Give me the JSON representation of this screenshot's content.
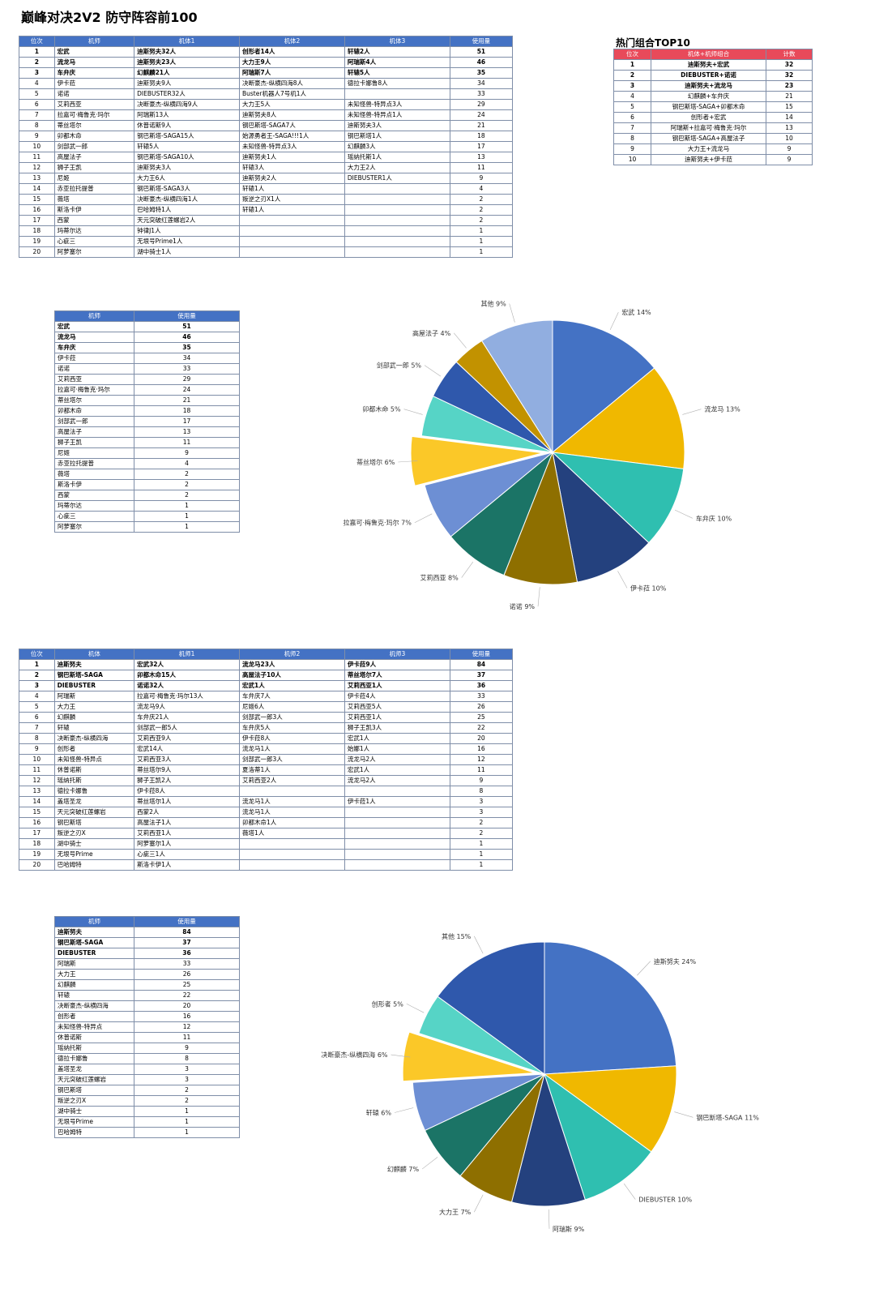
{
  "page_title": "巅峰对决2V2 防守阵容前100",
  "combo_title": "热门组合TOP10",
  "table1": {
    "headers": [
      "位次",
      "机师",
      "机体1",
      "机体2",
      "机体3",
      "使用量"
    ],
    "rows": [
      [
        "1",
        "宏武",
        "迪斯努夫32人",
        "创形者14人",
        "轩辕2人",
        "51"
      ],
      [
        "2",
        "流龙马",
        "迪斯努夫23人",
        "大力王9人",
        "阿瑞斯4人",
        "46"
      ],
      [
        "3",
        "车弁庆",
        "幻麒麟21人",
        "阿瑞斯7人",
        "轩辕5人",
        "35"
      ],
      [
        "4",
        "伊卡菈",
        "迪斯努夫9人",
        "决断豪杰-纵横四海8人",
        "德拉卡娜鲁8人",
        "34"
      ],
      [
        "5",
        "诺诺",
        "DIEBUSTER32人",
        "Buster机器人7号机1人",
        "",
        "33"
      ],
      [
        "6",
        "艾莉西亚",
        "决断豪杰-纵横四海9人",
        "大力王5人",
        "未知怪兽-特异点3人",
        "29"
      ],
      [
        "7",
        "拉嘉可·梅鲁克·玛尔",
        "阿瑞斯13人",
        "迪斯努夫8人",
        "未知怪兽-特异点1人",
        "24"
      ],
      [
        "8",
        "蒂丝塔尔",
        "休普诺斯9人",
        "钢巴斯塔-SAGA7人",
        "迪斯努夫3人",
        "21"
      ],
      [
        "9",
        "卯都木命",
        "钢巴斯塔-SAGA15人",
        "始源勇者王-SAGA!!!1人",
        "钢巴斯塔1人",
        "18"
      ],
      [
        "10",
        "剑部武一郎",
        "轩辕5人",
        "未知怪兽-特异点3人",
        "幻麒麟3人",
        "17"
      ],
      [
        "11",
        "高屋法子",
        "钢巴斯塔-SAGA10人",
        "迪斯努夫1人",
        "瑶纳托斯1人",
        "13"
      ],
      [
        "12",
        "狮子王凯",
        "迪斯努夫3人",
        "轩辕3人",
        "大力王2人",
        "11"
      ],
      [
        "13",
        "尼姬",
        "大力王6人",
        "迪斯努夫2人",
        "DIEBUSTER1人",
        "9"
      ],
      [
        "14",
        "赤亚拉托提普",
        "钢巴斯塔-SAGA3人",
        "轩辕1人",
        "",
        "4"
      ],
      [
        "15",
        "薇塔",
        "决断豪杰-纵横四海1人",
        "叛逆之刃X1人",
        "",
        "2"
      ],
      [
        "16",
        "斯洛卡伊",
        "巴哈姆特1人",
        "轩辕1人",
        "",
        "2"
      ],
      [
        "17",
        "西蒙",
        "天元突破红莲螺岩2人",
        "",
        "",
        "2"
      ],
      [
        "18",
        "玛蒂尔达",
        "钟律J1人",
        "",
        "",
        "1"
      ],
      [
        "19",
        "心疵三",
        "无垠号Prime1人",
        "",
        "",
        "1"
      ],
      [
        "20",
        "阿萝塞尔",
        "湖中骑士1人",
        "",
        "",
        "1"
      ]
    ]
  },
  "combo_table": {
    "headers": [
      "位次",
      "机体+机师组合",
      "计数"
    ],
    "rows": [
      [
        "1",
        "迪斯努夫+宏武",
        "32"
      ],
      [
        "2",
        "DIEBUSTER+诺诺",
        "32"
      ],
      [
        "3",
        "迪斯努夫+流龙马",
        "23"
      ],
      [
        "4",
        "幻麒麟+车弁庆",
        "21"
      ],
      [
        "5",
        "钢巴斯塔-SAGA+卯都木命",
        "15"
      ],
      [
        "6",
        "创形者+宏武",
        "14"
      ],
      [
        "7",
        "阿瑞斯+拉嘉可·梅鲁克·玛尔",
        "13"
      ],
      [
        "8",
        "钢巴斯塔-SAGA+高屋法子",
        "10"
      ],
      [
        "9",
        "大力王+流龙马",
        "9"
      ],
      [
        "10",
        "迪斯努夫+伊卡菈",
        "9"
      ]
    ]
  },
  "table2": {
    "headers": [
      "机师",
      "使用量"
    ],
    "rows": [
      [
        "宏武",
        "51"
      ],
      [
        "流龙马",
        "46"
      ],
      [
        "车弁庆",
        "35"
      ],
      [
        "伊卡菈",
        "34"
      ],
      [
        "诺诺",
        "33"
      ],
      [
        "艾莉西亚",
        "29"
      ],
      [
        "拉嘉可·梅鲁克·玛尔",
        "24"
      ],
      [
        "蒂丝塔尔",
        "21"
      ],
      [
        "卯都木命",
        "18"
      ],
      [
        "剑部武一郎",
        "17"
      ],
      [
        "高屋法子",
        "13"
      ],
      [
        "狮子王凯",
        "11"
      ],
      [
        "尼姬",
        "9"
      ],
      [
        "赤亚拉托提普",
        "4"
      ],
      [
        "薇塔",
        "2"
      ],
      [
        "斯洛卡伊",
        "2"
      ],
      [
        "西蒙",
        "2"
      ],
      [
        "玛蒂尔达",
        "1"
      ],
      [
        "心疵三",
        "1"
      ],
      [
        "阿萝塞尔",
        "1"
      ]
    ]
  },
  "table3": {
    "headers": [
      "位次",
      "机体",
      "机师1",
      "机师2",
      "机师3",
      "使用量"
    ],
    "rows": [
      [
        "1",
        "迪斯努夫",
        "宏武32人",
        "流龙马23人",
        "伊卡菈9人",
        "84"
      ],
      [
        "2",
        "钢巴斯塔-SAGA",
        "卯都木命15人",
        "高屋法子10人",
        "蒂丝塔尔7人",
        "37"
      ],
      [
        "3",
        "DIEBUSTER",
        "诺诺32人",
        "宏武1人",
        "艾莉西亚1人",
        "36"
      ],
      [
        "4",
        "阿瑞斯",
        "拉嘉可·梅鲁克·玛尔13人",
        "车弁庆7人",
        "伊卡菈4人",
        "33"
      ],
      [
        "5",
        "大力王",
        "流龙马9人",
        "尼姬6人",
        "艾莉西亚5人",
        "26"
      ],
      [
        "6",
        "幻麒麟",
        "车弁庆21人",
        "剑部武一郎3人",
        "艾莉西亚1人",
        "25"
      ],
      [
        "7",
        "轩辕",
        "剑部武一郎5人",
        "车弁庆5人",
        "狮子王凯3人",
        "22"
      ],
      [
        "8",
        "决断豪杰-纵横四海",
        "艾莉西亚9人",
        "伊卡菈8人",
        "宏武1人",
        "20"
      ],
      [
        "9",
        "创形者",
        "宏武14人",
        "流龙马1人",
        "始娜1人",
        "16"
      ],
      [
        "10",
        "未知怪兽-特异点",
        "艾莉西亚3人",
        "剑部武一郎3人",
        "流龙马2人",
        "12"
      ],
      [
        "11",
        "休普诺斯",
        "蒂丝塔尔9人",
        "夏洛蒂1人",
        "宏武1人",
        "11"
      ],
      [
        "12",
        "瑶纳托斯",
        "狮子王凯2人",
        "艾莉西亚2人",
        "流龙马2人",
        "9"
      ],
      [
        "13",
        "德拉卡娜鲁",
        "伊卡菈8人",
        "",
        "",
        "8"
      ],
      [
        "14",
        "盖塔圣龙",
        "蒂丝塔尔1人",
        "流龙马1人",
        "伊卡菈1人",
        "3"
      ],
      [
        "15",
        "天元突破红莲螺岩",
        "西蒙2人",
        "流龙马1人",
        "",
        "3"
      ],
      [
        "16",
        "钢巴斯塔",
        "高屋法子1人",
        "卯都木命1人",
        "",
        "2"
      ],
      [
        "17",
        "叛逆之刃X",
        "艾莉西亚1人",
        "薇塔1人",
        "",
        "2"
      ],
      [
        "18",
        "湖中骑士",
        "阿萝塞尔1人",
        "",
        "",
        "1"
      ],
      [
        "19",
        "无垠号Prime",
        "心疵三1人",
        "",
        "",
        "1"
      ],
      [
        "20",
        "巴哈姆特",
        "斯洛卡伊1人",
        "",
        "",
        "1"
      ]
    ]
  },
  "table4": {
    "headers": [
      "机师",
      "使用量"
    ],
    "rows": [
      [
        "迪斯努夫",
        "84"
      ],
      [
        "钢巴斯塔-SAGA",
        "37"
      ],
      [
        "DIEBUSTER",
        "36"
      ],
      [
        "阿瑞斯",
        "33"
      ],
      [
        "大力王",
        "26"
      ],
      [
        "幻麒麟",
        "25"
      ],
      [
        "轩辕",
        "22"
      ],
      [
        "决断豪杰-纵横四海",
        "20"
      ],
      [
        "创形者",
        "16"
      ],
      [
        "未知怪兽-特异点",
        "12"
      ],
      [
        "休普诺斯",
        "11"
      ],
      [
        "瑶纳托斯",
        "9"
      ],
      [
        "德拉卡娜鲁",
        "8"
      ],
      [
        "盖塔圣龙",
        "3"
      ],
      [
        "天元突破红莲螺岩",
        "3"
      ],
      [
        "钢巴斯塔",
        "2"
      ],
      [
        "叛逆之刃X",
        "2"
      ],
      [
        "湖中骑士",
        "1"
      ],
      [
        "无垠号Prime",
        "1"
      ],
      [
        "巴哈姆特",
        "1"
      ]
    ]
  },
  "chart_data": [
    {
      "type": "pie",
      "slices": [
        {
          "label": "宏武 14%",
          "value": 14,
          "color": "#4472c4"
        },
        {
          "label": "流龙马 13%",
          "value": 13,
          "color": "#f0b800"
        },
        {
          "label": "车弁庆 10%",
          "value": 10,
          "color": "#2fbfb0"
        },
        {
          "label": "伊卡菈 10%",
          "value": 10,
          "color": "#24417e"
        },
        {
          "label": "诺诺 9%",
          "value": 9,
          "color": "#8e6f00"
        },
        {
          "label": "艾莉西亚 8%",
          "value": 8,
          "color": "#1b7466"
        },
        {
          "label": "拉嘉可·梅鲁克·玛尔 7%",
          "value": 7,
          "color": "#6d8fd4"
        },
        {
          "label": "蒂丝塔尔 6%",
          "value": 6,
          "color": "#fbc828",
          "explode": true
        },
        {
          "label": "卯都木命 5%",
          "value": 5,
          "color": "#56d4c6"
        },
        {
          "label": "剑部武一郎 5%",
          "value": 5,
          "color": "#2f58ac"
        },
        {
          "label": "高屋法子 4%",
          "value": 4,
          "color": "#c29200"
        },
        {
          "label": "其他 9%",
          "value": 9,
          "color": "#91aee0"
        }
      ]
    },
    {
      "type": "pie",
      "slices": [
        {
          "label": "迪斯努夫 24%",
          "value": 24,
          "color": "#4472c4"
        },
        {
          "label": "钢巴斯塔-SAGA 11%",
          "value": 11,
          "color": "#f0b800"
        },
        {
          "label": "DIEBUSTER 10%",
          "value": 10,
          "color": "#2fbfb0"
        },
        {
          "label": "阿瑞斯 9%",
          "value": 9,
          "color": "#24417e"
        },
        {
          "label": "大力王 7%",
          "value": 7,
          "color": "#8e6f00"
        },
        {
          "label": "幻麒麟 7%",
          "value": 7,
          "color": "#1b7466"
        },
        {
          "label": "轩辕 6%",
          "value": 6,
          "color": "#6d8fd4"
        },
        {
          "label": "决断豪杰-纵横四海 6%",
          "value": 6,
          "color": "#fbc828",
          "explode": true
        },
        {
          "label": "创形者 5%",
          "value": 5,
          "color": "#56d4c6"
        },
        {
          "label": "其他 15%",
          "value": 15,
          "color": "#2f58ac"
        }
      ]
    }
  ]
}
